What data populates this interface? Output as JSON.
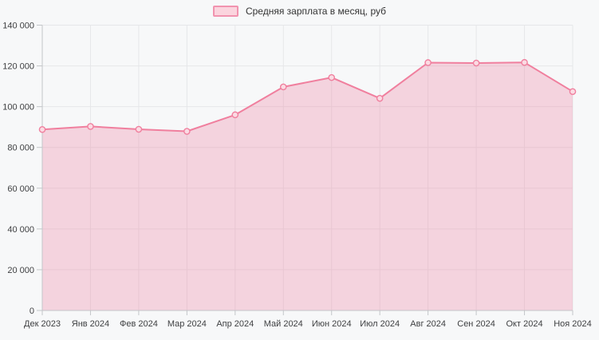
{
  "chart_data": {
    "type": "area",
    "title": "",
    "categories": [
      "Дек 2023",
      "Янв 2024",
      "Фев 2024",
      "Мар 2024",
      "Апр 2024",
      "Май 2024",
      "Июн 2024",
      "Июл 2024",
      "Авг 2024",
      "Сен 2024",
      "Окт 2024",
      "Ноя 2024"
    ],
    "series": [
      {
        "name": "Средняя зарплата в месяц, руб",
        "values": [
          88800,
          90300,
          88900,
          87900,
          96000,
          109700,
          114300,
          104100,
          121600,
          121400,
          121700,
          107400
        ]
      }
    ],
    "xlabel": "",
    "ylabel": "",
    "ylim": [
      0,
      140000
    ],
    "ytick_step": 20000,
    "ytick_labels": [
      "0",
      "20 000",
      "40 000",
      "60 000",
      "80 000",
      "100 000",
      "120 000",
      "140 000"
    ],
    "grid": true,
    "legend_position": "top-center",
    "markers": true,
    "colors": {
      "line": "#f07f9e",
      "area_fill": "#f07f9e",
      "area_opacity": 0.3,
      "marker_fill": "#fbdbe3",
      "grid": "#e6e7e9",
      "axis": "#c3c6c9",
      "tick_text": "#3f4042",
      "background": "#f7f8f9",
      "legend_swatch_border": "#f193af",
      "legend_swatch_fill": "#fbd4de",
      "legend_text": "#333333"
    }
  }
}
